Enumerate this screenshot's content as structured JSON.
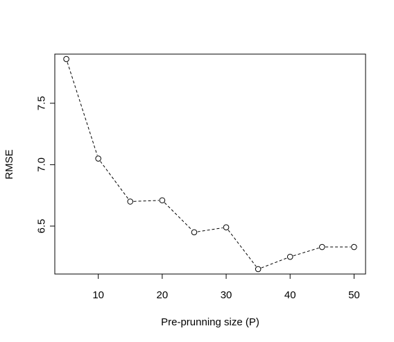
{
  "chart_data": {
    "type": "line",
    "title": "",
    "xlabel": "Pre-prunning size (P)",
    "ylabel": "RMSE",
    "x": [
      5,
      10,
      15,
      20,
      25,
      30,
      35,
      40,
      45,
      50
    ],
    "series": [
      {
        "values": [
          7.86,
          7.05,
          6.7,
          6.71,
          6.45,
          6.49,
          6.15,
          6.25,
          6.33,
          6.33
        ]
      }
    ],
    "xlim": [
      3.2,
      51.8
    ],
    "ylim": [
      6.11,
      7.9
    ],
    "xticks": [
      10,
      20,
      30,
      40,
      50
    ],
    "yticks": [
      6.5,
      7.0,
      7.5
    ],
    "xtick_labels": [
      "10",
      "20",
      "30",
      "40",
      "50"
    ],
    "ytick_labels": [
      "6.5",
      "7.0",
      "7.5"
    ],
    "line_style": "dashed",
    "marker": "open-circle",
    "grid": false,
    "legend": "none"
  }
}
